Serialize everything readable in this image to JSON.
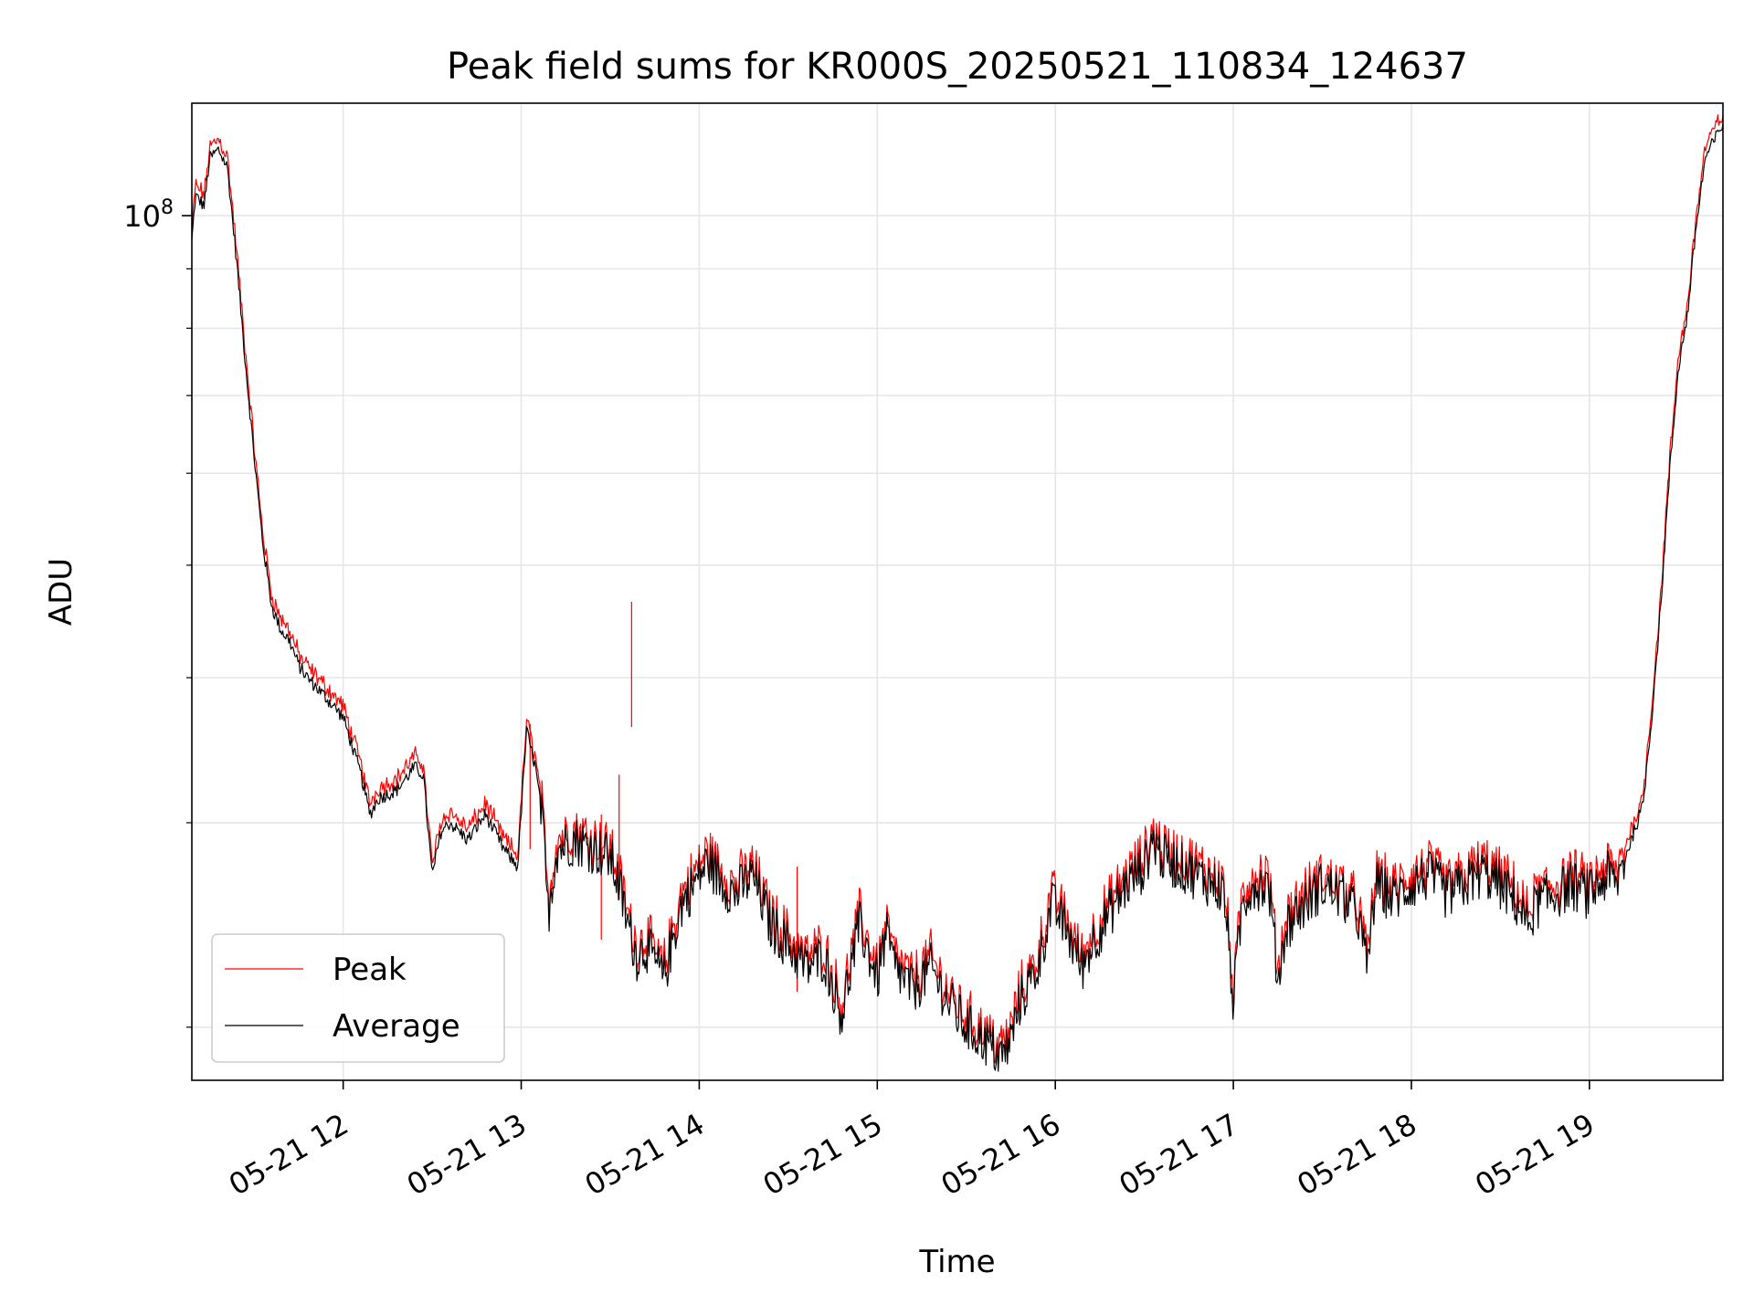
{
  "chart_data": {
    "type": "line",
    "title": "Peak field sums for KR000S_20250521_110834_124637",
    "xlabel": "Time",
    "ylabel": "ADU",
    "y_scale": "log",
    "x_range_hours": [
      11.15,
      19.75
    ],
    "ylim": [
      18000000,
      125000000
    ],
    "y_major_ticks": [
      {
        "value": 100000000,
        "base": "10",
        "exp": "8"
      }
    ],
    "y_minor_ticks": [
      20000000,
      30000000,
      40000000,
      50000000,
      60000000,
      70000000,
      80000000,
      90000000
    ],
    "x_ticks": [
      {
        "hour": 12,
        "label": "05-21 12"
      },
      {
        "hour": 13,
        "label": "05-21 13"
      },
      {
        "hour": 14,
        "label": "05-21 14"
      },
      {
        "hour": 15,
        "label": "05-21 15"
      },
      {
        "hour": 16,
        "label": "05-21 16"
      },
      {
        "hour": 17,
        "label": "05-21 17"
      },
      {
        "hour": 18,
        "label": "05-21 18"
      },
      {
        "hour": 19,
        "label": "05-21 19"
      }
    ],
    "grid": true,
    "legend_position": "lower-left",
    "series": [
      {
        "name": "Peak",
        "color": "#ff0000"
      },
      {
        "name": "Average",
        "color": "#000000"
      }
    ],
    "avg_points_hours_adu": [
      [
        11.15,
        95000000
      ],
      [
        11.17,
        104000000
      ],
      [
        11.22,
        102000000
      ],
      [
        11.25,
        112000000
      ],
      [
        11.3,
        114000000
      ],
      [
        11.35,
        110000000
      ],
      [
        11.4,
        92000000
      ],
      [
        11.45,
        75000000
      ],
      [
        11.5,
        62000000
      ],
      [
        11.55,
        52000000
      ],
      [
        11.6,
        46000000
      ],
      [
        11.65,
        44000000
      ],
      [
        11.7,
        43000000
      ],
      [
        11.75,
        41000000
      ],
      [
        11.8,
        40000000
      ],
      [
        11.9,
        38500000
      ],
      [
        12.0,
        37000000
      ],
      [
        12.1,
        33000000
      ],
      [
        12.15,
        30500000
      ],
      [
        12.2,
        31500000
      ],
      [
        12.3,
        32000000
      ],
      [
        12.4,
        33500000
      ],
      [
        12.45,
        33000000
      ],
      [
        12.5,
        27000000
      ],
      [
        12.55,
        29500000
      ],
      [
        12.6,
        30000000
      ],
      [
        12.7,
        29000000
      ],
      [
        12.8,
        30500000
      ],
      [
        12.9,
        28500000
      ],
      [
        12.98,
        27500000
      ],
      [
        13.03,
        36000000
      ],
      [
        13.08,
        33500000
      ],
      [
        13.12,
        30000000
      ],
      [
        13.15,
        25000000
      ],
      [
        13.2,
        28500000
      ],
      [
        13.3,
        29000000
      ],
      [
        13.4,
        28500000
      ],
      [
        13.5,
        28000000
      ],
      [
        13.55,
        26500000
      ],
      [
        13.6,
        24500000
      ],
      [
        13.65,
        23000000
      ],
      [
        13.7,
        23500000
      ],
      [
        13.8,
        22000000
      ],
      [
        13.9,
        25500000
      ],
      [
        14.0,
        27000000
      ],
      [
        14.05,
        27800000
      ],
      [
        14.1,
        27000000
      ],
      [
        14.2,
        26000000
      ],
      [
        14.3,
        27000000
      ],
      [
        14.4,
        24500000
      ],
      [
        14.5,
        23500000
      ],
      [
        14.6,
        22500000
      ],
      [
        14.7,
        23000000
      ],
      [
        14.8,
        20500000
      ],
      [
        14.9,
        24500000
      ],
      [
        15.0,
        22000000
      ],
      [
        15.05,
        24000000
      ],
      [
        15.1,
        22500000
      ],
      [
        15.2,
        21500000
      ],
      [
        15.3,
        22500000
      ],
      [
        15.4,
        21000000
      ],
      [
        15.5,
        20000000
      ],
      [
        15.6,
        19500000
      ],
      [
        15.7,
        18800000
      ],
      [
        15.75,
        19500000
      ],
      [
        15.8,
        21000000
      ],
      [
        15.9,
        22500000
      ],
      [
        15.98,
        25500000
      ],
      [
        16.05,
        24500000
      ],
      [
        16.1,
        23500000
      ],
      [
        16.15,
        22500000
      ],
      [
        16.2,
        23500000
      ],
      [
        16.3,
        25000000
      ],
      [
        16.4,
        26500000
      ],
      [
        16.5,
        27500000
      ],
      [
        16.55,
        29000000
      ],
      [
        16.6,
        28000000
      ],
      [
        16.7,
        27500000
      ],
      [
        16.8,
        27000000
      ],
      [
        16.9,
        26500000
      ],
      [
        16.95,
        26000000
      ],
      [
        17.0,
        21000000
      ],
      [
        17.05,
        25500000
      ],
      [
        17.1,
        26500000
      ],
      [
        17.2,
        26500000
      ],
      [
        17.25,
        22000000
      ],
      [
        17.3,
        24500000
      ],
      [
        17.4,
        25500000
      ],
      [
        17.5,
        26500000
      ],
      [
        17.6,
        26000000
      ],
      [
        17.7,
        25000000
      ],
      [
        17.75,
        22500000
      ],
      [
        17.8,
        26500000
      ],
      [
        17.9,
        25800000
      ],
      [
        18.0,
        26500000
      ],
      [
        18.1,
        27000000
      ],
      [
        18.2,
        26000000
      ],
      [
        18.3,
        26500000
      ],
      [
        18.4,
        27200000
      ],
      [
        18.5,
        26500000
      ],
      [
        18.6,
        25500000
      ],
      [
        18.65,
        24500000
      ],
      [
        18.7,
        25500000
      ],
      [
        18.8,
        26000000
      ],
      [
        18.9,
        26500000
      ],
      [
        19.0,
        26000000
      ],
      [
        19.1,
        27000000
      ],
      [
        19.15,
        26500000
      ],
      [
        19.2,
        28000000
      ],
      [
        19.3,
        31000000
      ],
      [
        19.35,
        37000000
      ],
      [
        19.4,
        46000000
      ],
      [
        19.45,
        60000000
      ],
      [
        19.5,
        74000000
      ],
      [
        19.55,
        82000000
      ],
      [
        19.6,
        98000000
      ],
      [
        19.65,
        112000000
      ],
      [
        19.7,
        116000000
      ],
      [
        19.75,
        120000000
      ]
    ]
  }
}
